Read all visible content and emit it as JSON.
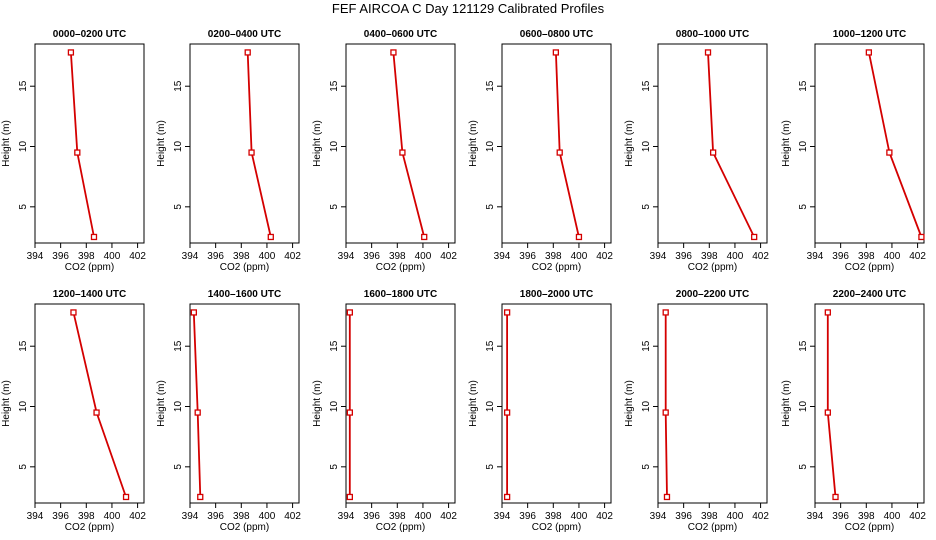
{
  "title": "FEF AIRCOA C  Day 121129  Calibrated Profiles",
  "colors": {
    "profile_line": "#d40000",
    "axis": "#000000",
    "background": "#ffffff"
  },
  "chart_data": {
    "type": "line",
    "xlabel": "CO2 (ppm)",
    "ylabel": "Height (m)",
    "xlim": [
      394,
      402.5
    ],
    "ylim": [
      2,
      18.5
    ],
    "xticks": [
      394,
      396,
      398,
      400,
      402
    ],
    "yticks": [
      5,
      10,
      15
    ],
    "heights": [
      2.5,
      9.5,
      17.8
    ],
    "panels": [
      {
        "title": "0000–0200 UTC",
        "co2": [
          398.6,
          397.3,
          396.8
        ]
      },
      {
        "title": "0200–0400 UTC",
        "co2": [
          400.3,
          398.8,
          398.5
        ]
      },
      {
        "title": "0400–0600 UTC",
        "co2": [
          400.1,
          398.4,
          397.7
        ]
      },
      {
        "title": "0600–0800 UTC",
        "co2": [
          400.0,
          398.5,
          398.2
        ]
      },
      {
        "title": "0800–1000 UTC",
        "co2": [
          401.5,
          398.3,
          397.9
        ]
      },
      {
        "title": "1000–1200 UTC",
        "co2": [
          402.3,
          399.8,
          398.2
        ]
      },
      {
        "title": "1200–1400 UTC",
        "co2": [
          401.1,
          398.8,
          397.0
        ]
      },
      {
        "title": "1400–1600 UTC",
        "co2": [
          394.8,
          394.6,
          394.3
        ]
      },
      {
        "title": "1600–1800 UTC",
        "co2": [
          394.3,
          394.3,
          394.3
        ]
      },
      {
        "title": "1800–2000 UTC",
        "co2": [
          394.4,
          394.4,
          394.4
        ]
      },
      {
        "title": "2000–2200 UTC",
        "co2": [
          394.7,
          394.6,
          394.6
        ]
      },
      {
        "title": "2200–2400 UTC",
        "co2": [
          395.6,
          395.0,
          395.0
        ]
      }
    ]
  }
}
